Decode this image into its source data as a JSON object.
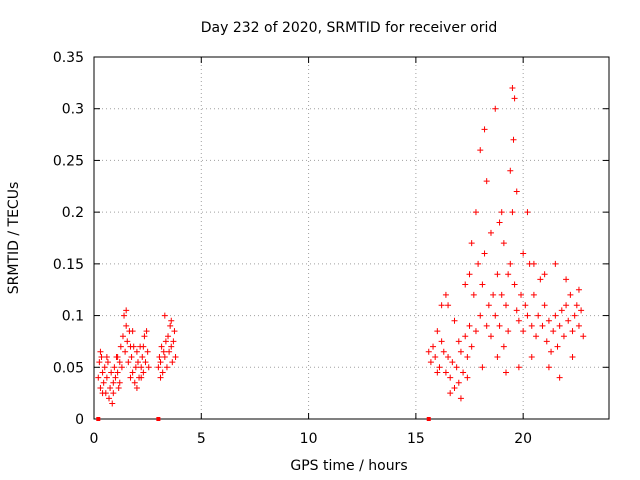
{
  "chart_data": {
    "type": "scatter",
    "title": "Day 232 of 2020, SRMTID for receiver orid",
    "xlabel": "GPS time / hours",
    "ylabel": "SRMTID / TECUs",
    "xlim": [
      0,
      24
    ],
    "ylim": [
      0,
      0.35
    ],
    "xticks": [
      0,
      5,
      10,
      15,
      20
    ],
    "xtick_labels": [
      "0",
      "5",
      "10",
      "15",
      "20"
    ],
    "yticks": [
      0,
      0.05,
      0.1,
      0.15,
      0.2,
      0.25,
      0.3,
      0.35
    ],
    "ytick_labels": [
      "0",
      "0.05",
      "0.1",
      "0.15",
      "0.2",
      "0.25",
      "0.3",
      "0.35"
    ],
    "grid": true,
    "marker": "plus",
    "color": "#ff0000",
    "series": [
      {
        "name": "SRMTID",
        "points": [
          [
            0.2,
            0.04
          ],
          [
            0.25,
            0.055
          ],
          [
            0.3,
            0.03
          ],
          [
            0.35,
            0.06
          ],
          [
            0.4,
            0.045
          ],
          [
            0.45,
            0.035
          ],
          [
            0.5,
            0.05
          ],
          [
            0.55,
            0.025
          ],
          [
            0.6,
            0.04
          ],
          [
            0.65,
            0.055
          ],
          [
            0.7,
            0.02
          ],
          [
            0.75,
            0.03
          ],
          [
            0.8,
            0.045
          ],
          [
            0.85,
            0.015
          ],
          [
            0.9,
            0.035
          ],
          [
            0.95,
            0.05
          ],
          [
            1.0,
            0.04
          ],
          [
            1.05,
            0.06
          ],
          [
            1.1,
            0.045
          ],
          [
            1.15,
            0.03
          ],
          [
            1.2,
            0.055
          ],
          [
            1.25,
            0.07
          ],
          [
            1.3,
            0.05
          ],
          [
            1.35,
            0.08
          ],
          [
            1.4,
            0.1
          ],
          [
            1.45,
            0.065
          ],
          [
            1.5,
            0.09
          ],
          [
            1.55,
            0.075
          ],
          [
            1.6,
            0.055
          ],
          [
            1.65,
            0.085
          ],
          [
            1.7,
            0.04
          ],
          [
            1.75,
            0.06
          ],
          [
            1.8,
            0.045
          ],
          [
            1.85,
            0.07
          ],
          [
            1.9,
            0.035
          ],
          [
            1.95,
            0.05
          ],
          [
            2.0,
            0.065
          ],
          [
            2.05,
            0.055
          ],
          [
            2.1,
            0.04
          ],
          [
            2.15,
            0.07
          ],
          [
            2.2,
            0.05
          ],
          [
            2.25,
            0.06
          ],
          [
            2.3,
            0.045
          ],
          [
            2.35,
            0.08
          ],
          [
            2.4,
            0.055
          ],
          [
            2.45,
            0.085
          ],
          [
            2.5,
            0.065
          ],
          [
            2.55,
            0.05
          ],
          [
            0.3,
            0.065
          ],
          [
            0.6,
            0.06
          ],
          [
            0.9,
            0.025
          ],
          [
            1.2,
            0.035
          ],
          [
            1.5,
            0.105
          ],
          [
            1.7,
            0.07
          ],
          [
            2.0,
            0.03
          ],
          [
            2.3,
            0.07
          ],
          [
            0.4,
            0.025
          ],
          [
            1.1,
            0.06
          ],
          [
            1.8,
            0.085
          ],
          [
            2.2,
            0.04
          ],
          [
            3.0,
            0.05
          ],
          [
            3.05,
            0.06
          ],
          [
            3.1,
            0.055
          ],
          [
            3.15,
            0.07
          ],
          [
            3.2,
            0.045
          ],
          [
            3.25,
            0.065
          ],
          [
            3.3,
            0.06
          ],
          [
            3.35,
            0.075
          ],
          [
            3.4,
            0.05
          ],
          [
            3.45,
            0.08
          ],
          [
            3.5,
            0.065
          ],
          [
            3.55,
            0.09
          ],
          [
            3.6,
            0.07
          ],
          [
            3.65,
            0.055
          ],
          [
            3.7,
            0.075
          ],
          [
            3.75,
            0.085
          ],
          [
            3.8,
            0.06
          ],
          [
            3.3,
            0.1
          ],
          [
            3.6,
            0.095
          ],
          [
            3.1,
            0.04
          ],
          [
            15.6,
            0.065
          ],
          [
            15.7,
            0.055
          ],
          [
            15.8,
            0.07
          ],
          [
            15.9,
            0.06
          ],
          [
            16.0,
            0.085
          ],
          [
            16.1,
            0.05
          ],
          [
            16.2,
            0.075
          ],
          [
            16.3,
            0.065
          ],
          [
            16.4,
            0.045
          ],
          [
            16.5,
            0.06
          ],
          [
            16.6,
            0.04
          ],
          [
            16.7,
            0.055
          ],
          [
            16.8,
            0.03
          ],
          [
            16.9,
            0.05
          ],
          [
            17.0,
            0.035
          ],
          [
            17.1,
            0.065
          ],
          [
            17.2,
            0.045
          ],
          [
            17.3,
            0.08
          ],
          [
            17.4,
            0.06
          ],
          [
            17.5,
            0.09
          ],
          [
            17.6,
            0.07
          ],
          [
            17.7,
            0.12
          ],
          [
            17.8,
            0.085
          ],
          [
            17.9,
            0.15
          ],
          [
            18.0,
            0.1
          ],
          [
            18.1,
            0.13
          ],
          [
            18.2,
            0.16
          ],
          [
            18.3,
            0.09
          ],
          [
            18.4,
            0.11
          ],
          [
            18.5,
            0.08
          ],
          [
            18.6,
            0.12
          ],
          [
            18.7,
            0.1
          ],
          [
            18.8,
            0.14
          ],
          [
            18.9,
            0.09
          ],
          [
            19.0,
            0.12
          ],
          [
            19.1,
            0.07
          ],
          [
            19.2,
            0.11
          ],
          [
            19.3,
            0.085
          ],
          [
            19.4,
            0.15
          ],
          [
            19.5,
            0.2
          ],
          [
            19.6,
            0.13
          ],
          [
            19.7,
            0.105
          ],
          [
            19.8,
            0.095
          ],
          [
            19.9,
            0.12
          ],
          [
            20.0,
            0.085
          ],
          [
            20.1,
            0.11
          ],
          [
            20.2,
            0.1
          ],
          [
            20.3,
            0.15
          ],
          [
            20.4,
            0.09
          ],
          [
            20.5,
            0.12
          ],
          [
            20.6,
            0.08
          ],
          [
            20.7,
            0.1
          ],
          [
            20.8,
            0.135
          ],
          [
            20.9,
            0.09
          ],
          [
            21.0,
            0.11
          ],
          [
            21.1,
            0.075
          ],
          [
            21.2,
            0.095
          ],
          [
            21.3,
            0.065
          ],
          [
            21.4,
            0.085
          ],
          [
            21.5,
            0.1
          ],
          [
            21.6,
            0.07
          ],
          [
            21.7,
            0.09
          ],
          [
            21.8,
            0.105
          ],
          [
            21.9,
            0.08
          ],
          [
            22.0,
            0.11
          ],
          [
            22.1,
            0.095
          ],
          [
            22.2,
            0.12
          ],
          [
            22.3,
            0.085
          ],
          [
            22.4,
            0.1
          ],
          [
            22.5,
            0.11
          ],
          [
            22.6,
            0.09
          ],
          [
            22.7,
            0.105
          ],
          [
            16.5,
            0.11
          ],
          [
            17.0,
            0.075
          ],
          [
            17.5,
            0.14
          ],
          [
            18.0,
            0.26
          ],
          [
            18.2,
            0.28
          ],
          [
            18.5,
            0.18
          ],
          [
            18.7,
            0.3
          ],
          [
            19.0,
            0.2
          ],
          [
            19.5,
            0.32
          ],
          [
            19.6,
            0.31
          ],
          [
            19.55,
            0.27
          ],
          [
            19.4,
            0.24
          ],
          [
            19.7,
            0.22
          ],
          [
            17.8,
            0.2
          ],
          [
            18.3,
            0.23
          ],
          [
            20.2,
            0.2
          ],
          [
            20.5,
            0.15
          ],
          [
            21.0,
            0.14
          ],
          [
            16.2,
            0.11
          ],
          [
            16.4,
            0.12
          ],
          [
            16.8,
            0.095
          ],
          [
            17.3,
            0.13
          ],
          [
            17.6,
            0.17
          ],
          [
            18.1,
            0.05
          ],
          [
            18.8,
            0.06
          ],
          [
            19.2,
            0.045
          ],
          [
            19.8,
            0.05
          ],
          [
            20.4,
            0.06
          ],
          [
            21.2,
            0.05
          ],
          [
            21.7,
            0.04
          ],
          [
            22.3,
            0.06
          ],
          [
            22.8,
            0.08
          ],
          [
            16.0,
            0.045
          ],
          [
            16.6,
            0.025
          ],
          [
            17.1,
            0.02
          ],
          [
            17.4,
            0.04
          ],
          [
            19.1,
            0.17
          ],
          [
            20.0,
            0.16
          ],
          [
            22.0,
            0.135
          ],
          [
            22.6,
            0.125
          ],
          [
            21.5,
            0.15
          ],
          [
            18.9,
            0.19
          ],
          [
            19.3,
            0.14
          ]
        ]
      }
    ],
    "extra_markers": [
      {
        "x": 0.2,
        "y": 0
      },
      {
        "x": 3.0,
        "y": 0
      },
      {
        "x": 15.6,
        "y": 0
      }
    ]
  }
}
